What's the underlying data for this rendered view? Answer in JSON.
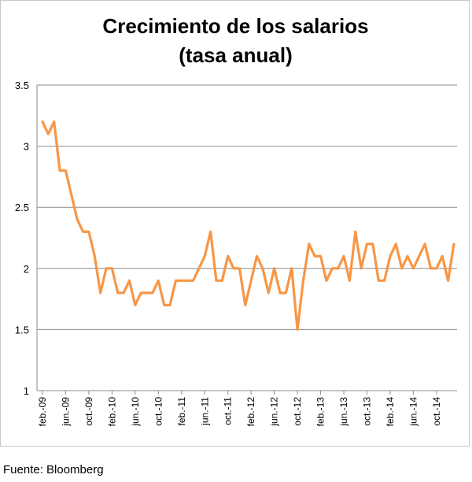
{
  "chart_data": {
    "type": "line",
    "title": [
      "Crecimiento de los salarios",
      "(tasa anual)"
    ],
    "xlabel": "",
    "ylabel": "",
    "ylim": [
      1,
      3.5
    ],
    "yticks": [
      "1",
      "1.5",
      "2",
      "2.5",
      "3",
      "3.5"
    ],
    "grid": "horizontal",
    "color": "#F79646",
    "xtick_labels": [
      "feb.-09",
      "jun.-09",
      "oct.-09",
      "feb.-10",
      "jun.-10",
      "oct.-10",
      "feb.-11",
      "jun.-11",
      "oct.-11",
      "feb.-12",
      "jun.-12",
      "oct.-12",
      "feb.-13",
      "jun.-13",
      "oct.-13",
      "feb.-14",
      "jun.-14",
      "oct.-14"
    ],
    "series": [
      {
        "values": [
          3.2,
          3.1,
          3.2,
          2.8,
          2.8,
          2.6,
          2.4,
          2.3,
          2.3,
          2.1,
          1.8,
          2.0,
          2.0,
          1.8,
          1.8,
          1.9,
          1.7,
          1.8,
          1.8,
          1.8,
          1.9,
          1.7,
          1.7,
          1.9,
          1.9,
          1.9,
          1.9,
          2.0,
          2.1,
          2.3,
          1.9,
          1.9,
          2.1,
          2.0,
          2.0,
          1.7,
          1.9,
          2.1,
          2.0,
          1.8,
          2.0,
          1.8,
          1.8,
          2.0,
          1.5,
          1.9,
          2.2,
          2.1,
          2.1,
          1.9,
          2.0,
          2.0,
          2.1,
          1.9,
          2.3,
          2.0,
          2.2,
          2.2,
          1.9,
          1.9,
          2.1,
          2.2,
          2.0,
          2.1,
          2.0,
          2.1,
          2.2,
          2.0,
          2.0,
          2.1,
          1.9,
          2.2
        ]
      }
    ]
  },
  "source": "Fuente: Bloomberg"
}
